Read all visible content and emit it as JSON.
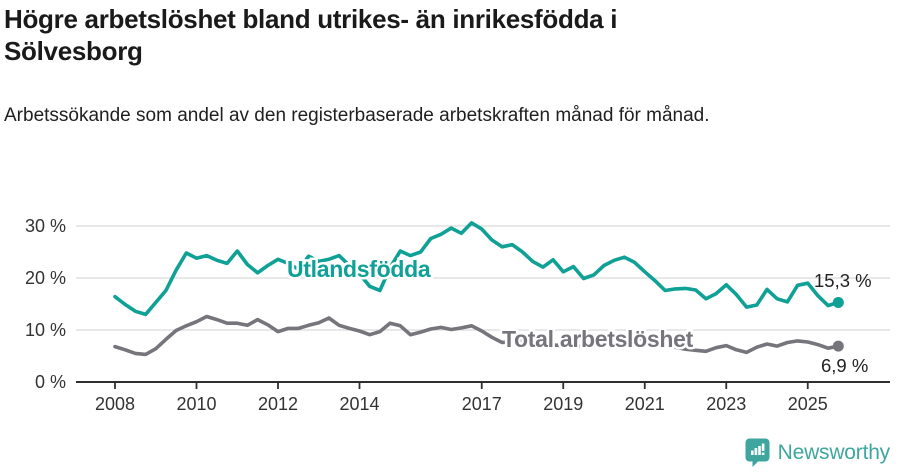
{
  "header": {
    "title": "Högre arbetslöshet bland utrikes- än inrikesfödda i Sölvesborg",
    "subtitle": "Arbetssökande som andel av den registerbaserade arbetskraften månad för månad."
  },
  "colors": {
    "series_teal": "#0fa096",
    "series_gray": "#75757b",
    "axis_line": "#2f2f2f",
    "gridline": "#d9d9d9",
    "tick_text": "#333333",
    "value_label_text": "#222222",
    "logo_teal": "#3ea69f"
  },
  "chart_data": {
    "type": "line",
    "title": "",
    "xlabel": "",
    "ylabel": "",
    "grid": true,
    "x_unit": "year (monthly data)",
    "x_start": 2008.0,
    "x_step": 0.25,
    "x_end": 2025.75,
    "xlim": [
      2007.0,
      2027.0
    ],
    "ylim": [
      0,
      33
    ],
    "x_ticks": [
      2008,
      2010,
      2012,
      2014,
      2017,
      2019,
      2021,
      2023,
      2025
    ],
    "x_tick_labels": [
      "2008",
      "2010",
      "2012",
      "2014",
      "2017",
      "2019",
      "2021",
      "2023",
      "2025"
    ],
    "y_ticks": [
      0,
      10,
      20,
      30
    ],
    "y_tick_labels": [
      "0 %",
      "10 %",
      "20 %",
      "30 %"
    ],
    "series": [
      {
        "name": "Utlandsfödda",
        "color": "#0fa096",
        "end_value": 15.3,
        "end_label": "15,3 %",
        "values": [
          16.4,
          14.9,
          13.6,
          13.0,
          15.3,
          17.6,
          21.5,
          24.8,
          23.8,
          24.3,
          23.4,
          22.8,
          25.2,
          22.6,
          21.0,
          22.4,
          23.6,
          22.8,
          21.7,
          24.2,
          23.2,
          23.6,
          24.3,
          22.4,
          20.8,
          18.4,
          17.6,
          22.0,
          25.2,
          24.3,
          25.0,
          27.6,
          28.4,
          29.6,
          28.6,
          30.6,
          29.4,
          27.3,
          26.0,
          26.4,
          25.0,
          23.2,
          22.1,
          23.5,
          21.2,
          22.2,
          19.9,
          20.6,
          22.4,
          23.4,
          24.0,
          23.0,
          21.2,
          19.5,
          17.6,
          17.9,
          18.0,
          17.7,
          16.0,
          17.0,
          18.7,
          16.8,
          14.4,
          14.8,
          17.8,
          16.0,
          15.4,
          18.6,
          19.0,
          16.6,
          14.7,
          15.3
        ]
      },
      {
        "name": "Total arbetslöshet",
        "color": "#75757b",
        "end_value": 6.9,
        "end_label": "6,9 %",
        "values": [
          6.8,
          6.2,
          5.5,
          5.3,
          6.4,
          8.2,
          9.9,
          10.8,
          11.6,
          12.6,
          12.0,
          11.3,
          11.3,
          10.9,
          12.0,
          11.0,
          9.7,
          10.3,
          10.3,
          10.9,
          11.4,
          12.3,
          10.9,
          10.3,
          9.8,
          9.1,
          9.7,
          11.3,
          10.8,
          9.1,
          9.6,
          10.2,
          10.5,
          10.1,
          10.4,
          10.8,
          9.8,
          8.6,
          7.6,
          7.8,
          7.9,
          7.6,
          7.3,
          7.1,
          7.0,
          6.9,
          6.8,
          7.0,
          7.4,
          8.6,
          8.9,
          8.5,
          8.0,
          7.6,
          7.1,
          6.7,
          6.3,
          6.1,
          5.9,
          6.6,
          7.0,
          6.2,
          5.7,
          6.7,
          7.3,
          6.9,
          7.6,
          7.9,
          7.7,
          7.2,
          6.5,
          6.9
        ]
      }
    ],
    "legend_position": "inline-labels"
  },
  "footer": {
    "brand": "Newsworthy",
    "logo_icon": "newsworthy-pin-barchart-icon"
  }
}
